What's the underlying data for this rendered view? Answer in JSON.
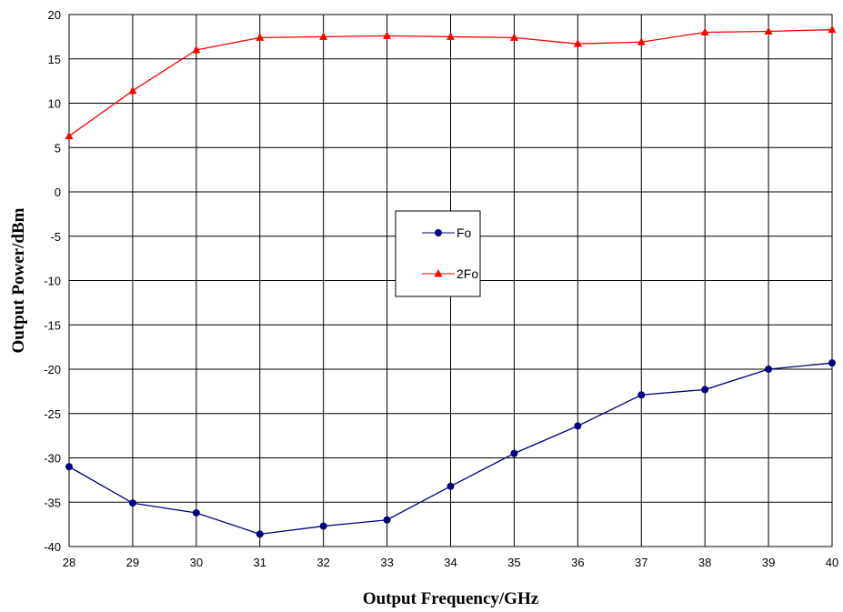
{
  "chart_data": {
    "type": "line",
    "title": "",
    "xlabel": "Output Frequency/GHz",
    "ylabel": "Output Power/dBm",
    "x": [
      28,
      29,
      30,
      31,
      32,
      33,
      34,
      35,
      36,
      37,
      38,
      39,
      40
    ],
    "xlim": [
      28,
      40
    ],
    "ylim": [
      -40,
      20
    ],
    "xticks": [
      "28",
      "29",
      "30",
      "31",
      "32",
      "33",
      "34",
      "35",
      "36",
      "37",
      "38",
      "39",
      "40"
    ],
    "yticks": [
      "20",
      "15",
      "10",
      "5",
      "0",
      "-5",
      "-10",
      "-15",
      "-20",
      "-25",
      "-30",
      "-35",
      "-40"
    ],
    "ytick_values": [
      20,
      15,
      10,
      5,
      0,
      -5,
      -10,
      -15,
      -20,
      -25,
      -30,
      -35,
      -40
    ],
    "grid": true,
    "legend_position": "center",
    "series": [
      {
        "name": "Fo",
        "color": "#000080",
        "marker": "circle",
        "values": [
          -31.0,
          -35.1,
          -36.2,
          -38.6,
          -37.7,
          -37.0,
          -33.2,
          -29.5,
          -26.4,
          -22.9,
          -22.3,
          -20.0,
          -19.3
        ]
      },
      {
        "name": "2Fo",
        "color": "#ff0000",
        "marker": "triangle",
        "values": [
          6.3,
          11.4,
          16.0,
          17.4,
          17.5,
          17.6,
          17.5,
          17.4,
          16.7,
          16.9,
          18.0,
          18.1,
          18.3
        ]
      }
    ]
  }
}
